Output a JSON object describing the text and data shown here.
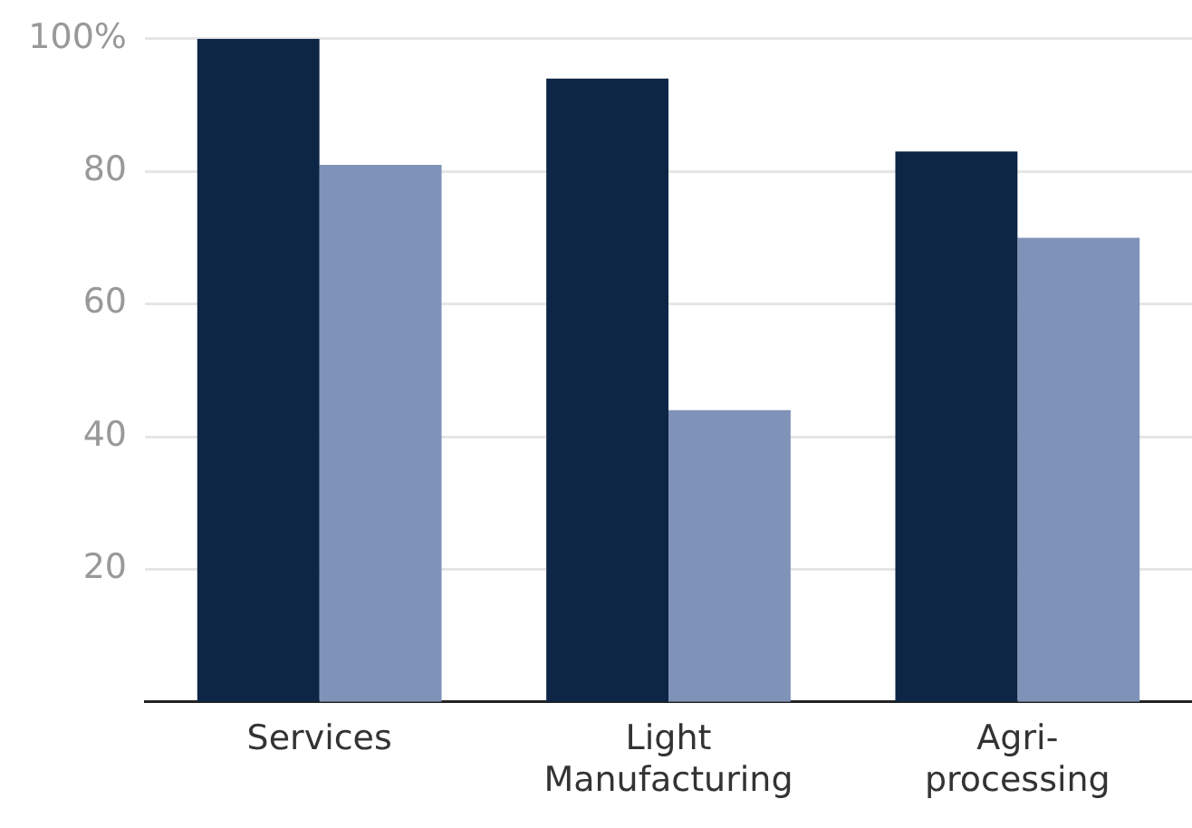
{
  "chart_data": {
    "type": "bar",
    "categories": [
      "Services",
      "Light Manufacturing",
      "Agri-processing"
    ],
    "series": [
      {
        "color": "#0d2646",
        "values": [
          100,
          94,
          83
        ]
      },
      {
        "color": "#7f93b8",
        "values": [
          81,
          44,
          70
        ]
      }
    ],
    "ylim": [
      0,
      100
    ],
    "yticks": [
      20,
      40,
      60,
      80,
      {
        "value": 100,
        "label": "100%"
      }
    ],
    "grid": "y",
    "legend": false
  }
}
